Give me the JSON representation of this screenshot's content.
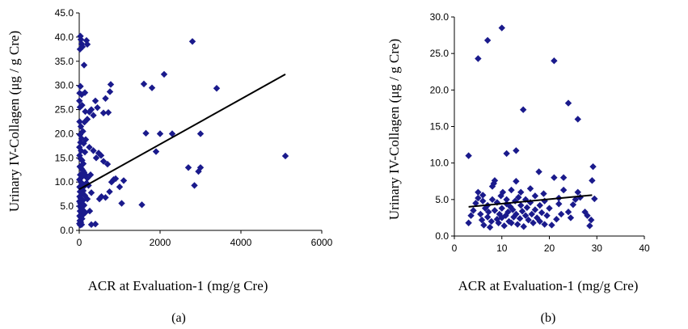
{
  "chart_data": [
    {
      "type": "scatter",
      "caption": "(a)",
      "xlabel": "ACR at Evaluation-1 (mg/g Cre)",
      "ylabel": "Urinary IV-Collagen (μg / g Cre)",
      "xlim": [
        0,
        6000
      ],
      "ylim": [
        0,
        45
      ],
      "xticks": [
        "0",
        "2000",
        "4000",
        "6000"
      ],
      "yticks": [
        "0.0",
        "5.0",
        "10.0",
        "15.0",
        "20.0",
        "25.0",
        "30.0",
        "35.0",
        "40.0",
        "45.0"
      ],
      "marker_color": "#1a1a8c",
      "trendline": {
        "x": [
          0,
          5100
        ],
        "y": [
          8.5,
          32.3
        ]
      },
      "points": [
        [
          30,
          40.2
        ],
        [
          40,
          39.5
        ],
        [
          180,
          39.3
        ],
        [
          60,
          38.6
        ],
        [
          200,
          38.5
        ],
        [
          20,
          37.5
        ],
        [
          80,
          38.0
        ],
        [
          120,
          34.2
        ],
        [
          30,
          29.8
        ],
        [
          10,
          28.4
        ],
        [
          60,
          28.1
        ],
        [
          140,
          28.5
        ],
        [
          5,
          26.8
        ],
        [
          20,
          25.5
        ],
        [
          70,
          25.9
        ],
        [
          150,
          24.6
        ],
        [
          250,
          24.5
        ],
        [
          400,
          26.8
        ],
        [
          300,
          25.0
        ],
        [
          450,
          25.4
        ],
        [
          350,
          23.8
        ],
        [
          600,
          24.3
        ],
        [
          650,
          27.3
        ],
        [
          720,
          24.4
        ],
        [
          780,
          30.2
        ],
        [
          760,
          28.7
        ],
        [
          10,
          22.5
        ],
        [
          40,
          21.5
        ],
        [
          130,
          22.4
        ],
        [
          200,
          23.0
        ],
        [
          90,
          20.5
        ],
        [
          20,
          19.8
        ],
        [
          60,
          19.0
        ],
        [
          160,
          18.8
        ],
        [
          30,
          18.2
        ],
        [
          110,
          18.0
        ],
        [
          5,
          17.2
        ],
        [
          45,
          16.5
        ],
        [
          140,
          16.2
        ],
        [
          250,
          17.2
        ],
        [
          350,
          16.5
        ],
        [
          420,
          15.0
        ],
        [
          480,
          16.0
        ],
        [
          540,
          15.5
        ],
        [
          600,
          14.3
        ],
        [
          700,
          13.7
        ],
        [
          10,
          15.5
        ],
        [
          35,
          14.8
        ],
        [
          70,
          14.5
        ],
        [
          100,
          13.8
        ],
        [
          15,
          13.2
        ],
        [
          55,
          12.8
        ],
        [
          90,
          12.4
        ],
        [
          120,
          12.0
        ],
        [
          25,
          11.5
        ],
        [
          60,
          11.0
        ],
        [
          150,
          11.5
        ],
        [
          200,
          10.8
        ],
        [
          280,
          11.5
        ],
        [
          5,
          10.5
        ],
        [
          40,
          10.0
        ],
        [
          80,
          9.6
        ],
        [
          130,
          9.2
        ],
        [
          180,
          9.8
        ],
        [
          230,
          9.3
        ],
        [
          10,
          9.0
        ],
        [
          50,
          8.6
        ],
        [
          100,
          8.2
        ],
        [
          20,
          8.0
        ],
        [
          70,
          7.6
        ],
        [
          140,
          7.2
        ],
        [
          300,
          7.8
        ],
        [
          10,
          7.0
        ],
        [
          40,
          6.6
        ],
        [
          90,
          6.2
        ],
        [
          200,
          6.5
        ],
        [
          5,
          6.0
        ],
        [
          30,
          5.6
        ],
        [
          60,
          5.4
        ],
        [
          120,
          5.2
        ],
        [
          15,
          5.0
        ],
        [
          45,
          4.6
        ],
        [
          80,
          4.3
        ],
        [
          20,
          4.0
        ],
        [
          55,
          3.6
        ],
        [
          100,
          3.3
        ],
        [
          10,
          3.0
        ],
        [
          35,
          2.7
        ],
        [
          70,
          2.4
        ],
        [
          15,
          2.0
        ],
        [
          40,
          1.7
        ],
        [
          5,
          1.4
        ],
        [
          25,
          1.1
        ],
        [
          60,
          1.2
        ],
        [
          150,
          3.7
        ],
        [
          260,
          4.0
        ],
        [
          300,
          1.2
        ],
        [
          400,
          1.3
        ],
        [
          500,
          6.5
        ],
        [
          550,
          7.0
        ],
        [
          650,
          6.8
        ],
        [
          750,
          8.0
        ],
        [
          850,
          10.5
        ],
        [
          900,
          10.7
        ],
        [
          800,
          10.0
        ],
        [
          1000,
          9.0
        ],
        [
          1050,
          5.6
        ],
        [
          1100,
          10.3
        ],
        [
          1550,
          5.3
        ],
        [
          1600,
          30.3
        ],
        [
          1650,
          20.1
        ],
        [
          1800,
          29.5
        ],
        [
          1900,
          16.3
        ],
        [
          2000,
          20.0
        ],
        [
          2100,
          32.3
        ],
        [
          2300,
          20.0
        ],
        [
          2700,
          13.0
        ],
        [
          2800,
          39.1
        ],
        [
          2850,
          9.3
        ],
        [
          2950,
          12.2
        ],
        [
          3000,
          13.0
        ],
        [
          3000,
          20.0
        ],
        [
          3400,
          29.4
        ],
        [
          5100,
          15.4
        ]
      ]
    },
    {
      "type": "scatter",
      "caption": "(b)",
      "xlabel": "ACR at Evaluation-1 (mg/g Cre)",
      "ylabel": "Urinary IV-Collagen (μg / g Cre)",
      "xlim": [
        0,
        40
      ],
      "ylim": [
        0,
        30
      ],
      "xticks": [
        "0",
        "10",
        "20",
        "30",
        "40"
      ],
      "yticks": [
        "0.0",
        "5.0",
        "10.0",
        "15.0",
        "20.0",
        "25.0",
        "30.0"
      ],
      "marker_color": "#1a1a8c",
      "trendline": {
        "x": [
          3,
          29
        ],
        "y": [
          4.0,
          5.6
        ]
      },
      "points": [
        [
          3,
          11.0
        ],
        [
          5,
          24.3
        ],
        [
          7,
          26.8
        ],
        [
          10,
          28.5
        ],
        [
          21,
          24.0
        ],
        [
          24,
          18.2
        ],
        [
          26,
          16.0
        ],
        [
          14.5,
          17.3
        ],
        [
          11,
          11.3
        ],
        [
          13,
          11.7
        ],
        [
          3,
          1.8
        ],
        [
          3.5,
          2.8
        ],
        [
          4,
          3.5
        ],
        [
          4.5,
          4.5
        ],
        [
          5,
          5.2
        ],
        [
          5,
          6.0
        ],
        [
          5.5,
          3.0
        ],
        [
          5.8,
          2.2
        ],
        [
          6,
          4.8
        ],
        [
          6,
          5.6
        ],
        [
          6.2,
          1.5
        ],
        [
          6.5,
          3.8
        ],
        [
          7,
          2.6
        ],
        [
          7,
          4.2
        ],
        [
          7.2,
          3.3
        ],
        [
          7.5,
          1.2
        ],
        [
          7.8,
          2.0
        ],
        [
          8,
          5.0
        ],
        [
          8,
          6.8
        ],
        [
          8.3,
          7.2
        ],
        [
          8.5,
          7.6
        ],
        [
          8.5,
          3.5
        ],
        [
          9,
          2.3
        ],
        [
          9,
          4.6
        ],
        [
          9.3,
          1.8
        ],
        [
          9.5,
          3.0
        ],
        [
          9.8,
          5.5
        ],
        [
          10,
          2.5
        ],
        [
          10,
          3.8
        ],
        [
          10.2,
          6.0
        ],
        [
          10.5,
          1.4
        ],
        [
          10.8,
          2.8
        ],
        [
          11,
          4.4
        ],
        [
          11,
          5.0
        ],
        [
          11.3,
          3.3
        ],
        [
          11.5,
          2.0
        ],
        [
          11.8,
          4.0
        ],
        [
          12,
          6.3
        ],
        [
          12,
          1.8
        ],
        [
          12.3,
          3.6
        ],
        [
          12.5,
          2.6
        ],
        [
          12.8,
          4.8
        ],
        [
          13,
          3.0
        ],
        [
          13,
          7.5
        ],
        [
          13.3,
          1.6
        ],
        [
          13.5,
          5.3
        ],
        [
          13.8,
          2.4
        ],
        [
          14,
          4.2
        ],
        [
          14,
          6.0
        ],
        [
          14.3,
          3.4
        ],
        [
          14.6,
          1.3
        ],
        [
          15,
          5.0
        ],
        [
          15,
          2.8
        ],
        [
          15.3,
          3.9
        ],
        [
          15.6,
          2.2
        ],
        [
          16,
          4.6
        ],
        [
          16,
          6.5
        ],
        [
          16.3,
          3.0
        ],
        [
          16.6,
          1.8
        ],
        [
          17,
          5.5
        ],
        [
          17,
          3.6
        ],
        [
          17.4,
          2.5
        ],
        [
          17.8,
          8.8
        ],
        [
          18,
          4.2
        ],
        [
          18,
          2.0
        ],
        [
          18.4,
          3.2
        ],
        [
          18.8,
          5.8
        ],
        [
          19,
          1.6
        ],
        [
          19,
          4.8
        ],
        [
          19.5,
          2.8
        ],
        [
          20,
          3.8
        ],
        [
          20.5,
          1.5
        ],
        [
          21,
          8.0
        ],
        [
          21.5,
          2.3
        ],
        [
          22,
          5.2
        ],
        [
          22,
          4.4
        ],
        [
          22.5,
          3.0
        ],
        [
          23,
          8.0
        ],
        [
          23,
          6.3
        ],
        [
          24,
          3.3
        ],
        [
          24.5,
          2.5
        ],
        [
          25,
          4.3
        ],
        [
          25.5,
          5.0
        ],
        [
          26,
          6.0
        ],
        [
          26.5,
          5.3
        ],
        [
          27.5,
          3.3
        ],
        [
          28,
          2.8
        ],
        [
          28.5,
          1.4
        ],
        [
          28.8,
          2.2
        ],
        [
          29,
          7.6
        ],
        [
          29.2,
          9.5
        ],
        [
          29.5,
          5.1
        ]
      ]
    }
  ]
}
